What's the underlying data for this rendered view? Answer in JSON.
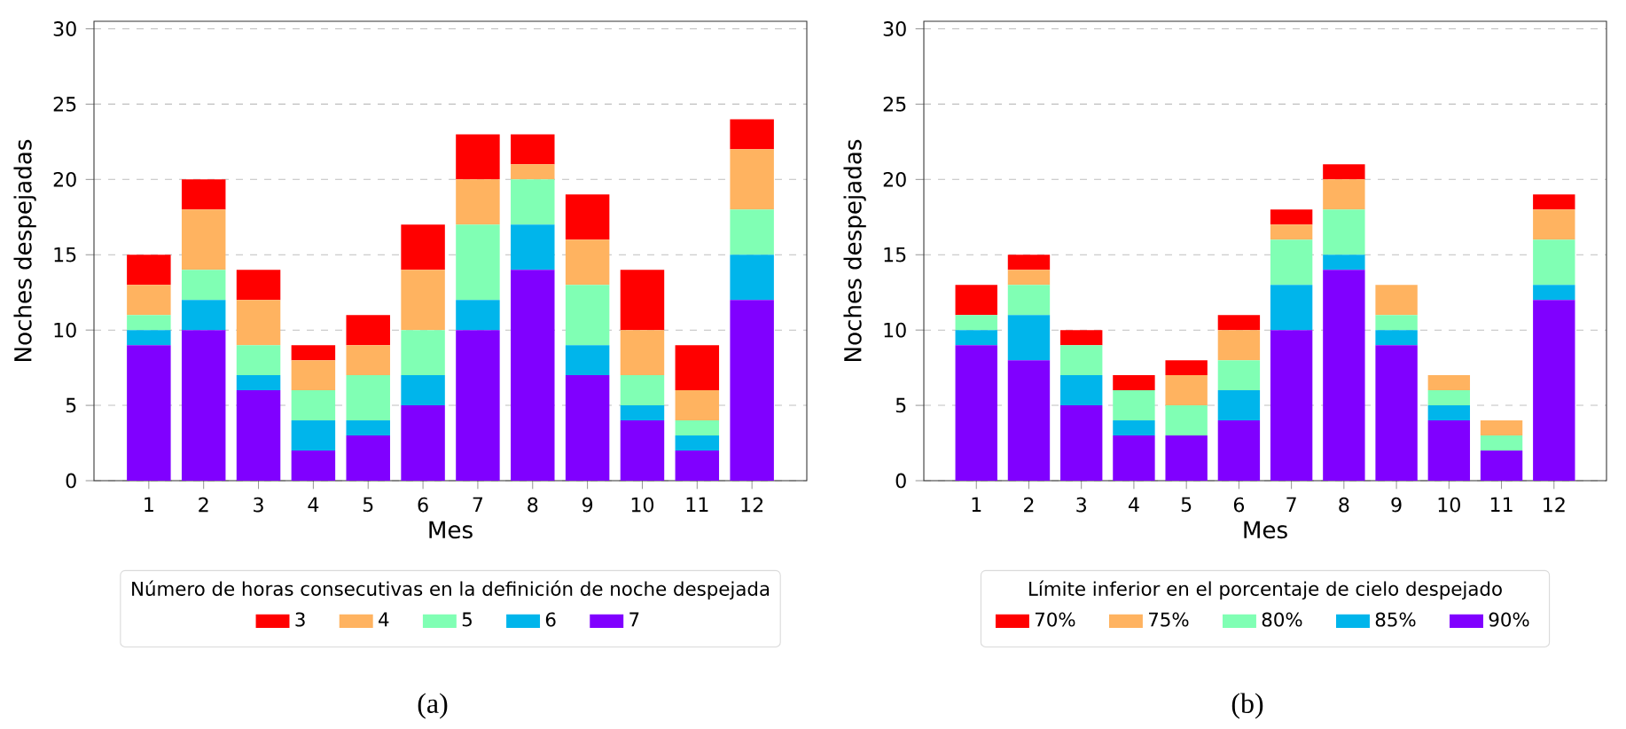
{
  "chart_data": [
    {
      "type": "bar",
      "stacked": true,
      "xlabel": "Mes",
      "ylabel": "Noches despejadas",
      "legend": "bottom",
      "legend_title": "Número de horas consecutivas en la definición de noche despejada",
      "grid": "y",
      "ylim": [
        0,
        30.5
      ],
      "yticks": [
        0,
        5,
        10,
        15,
        20,
        25,
        30
      ],
      "categories": [
        "1",
        "2",
        "3",
        "4",
        "5",
        "6",
        "7",
        "8",
        "9",
        "10",
        "11",
        "12"
      ],
      "series": [
        {
          "name": "7",
          "color": "#8000ff",
          "values": [
            9,
            10,
            6,
            2,
            3,
            5,
            10,
            14,
            7,
            4,
            2,
            12
          ]
        },
        {
          "name": "6",
          "color": "#00b5eb",
          "values": [
            1,
            2,
            1,
            2,
            1,
            2,
            2,
            3,
            2,
            1,
            1,
            3
          ]
        },
        {
          "name": "5",
          "color": "#80ffb4",
          "values": [
            1,
            2,
            2,
            2,
            3,
            3,
            5,
            3,
            4,
            2,
            1,
            3
          ]
        },
        {
          "name": "4",
          "color": "#ffb360",
          "values": [
            2,
            4,
            3,
            2,
            2,
            4,
            3,
            1,
            3,
            3,
            2,
            4
          ]
        },
        {
          "name": "3",
          "color": "#ff0000",
          "values": [
            2,
            2,
            2,
            1,
            2,
            3,
            3,
            2,
            3,
            4,
            3,
            2
          ]
        }
      ],
      "annotations": [
        "(a)"
      ]
    },
    {
      "type": "bar",
      "stacked": true,
      "xlabel": "Mes",
      "ylabel": "Noches despejadas",
      "legend": "bottom",
      "legend_title": "Límite inferior en el porcentaje de cielo despejado",
      "grid": "y",
      "ylim": [
        0,
        30.5
      ],
      "yticks": [
        0,
        5,
        10,
        15,
        20,
        25,
        30
      ],
      "categories": [
        "1",
        "2",
        "3",
        "4",
        "5",
        "6",
        "7",
        "8",
        "9",
        "10",
        "11",
        "12"
      ],
      "series": [
        {
          "name": "90%",
          "color": "#8000ff",
          "values": [
            9,
            8,
            5,
            3,
            3,
            4,
            10,
            14,
            9,
            4,
            2,
            12
          ]
        },
        {
          "name": "85%",
          "color": "#00b5eb",
          "values": [
            1,
            3,
            2,
            1,
            0,
            2,
            3,
            1,
            1,
            1,
            0,
            1
          ]
        },
        {
          "name": "80%",
          "color": "#80ffb4",
          "values": [
            1,
            2,
            2,
            2,
            2,
            2,
            3,
            3,
            1,
            1,
            1,
            3
          ]
        },
        {
          "name": "75%",
          "color": "#ffb360",
          "values": [
            0,
            1,
            0,
            0,
            2,
            2,
            1,
            2,
            2,
            1,
            1,
            2
          ]
        },
        {
          "name": "70%",
          "color": "#ff0000",
          "values": [
            2,
            1,
            1,
            1,
            1,
            1,
            1,
            1,
            0,
            0,
            0,
            1
          ]
        }
      ],
      "annotations": [
        "(b)"
      ]
    }
  ]
}
